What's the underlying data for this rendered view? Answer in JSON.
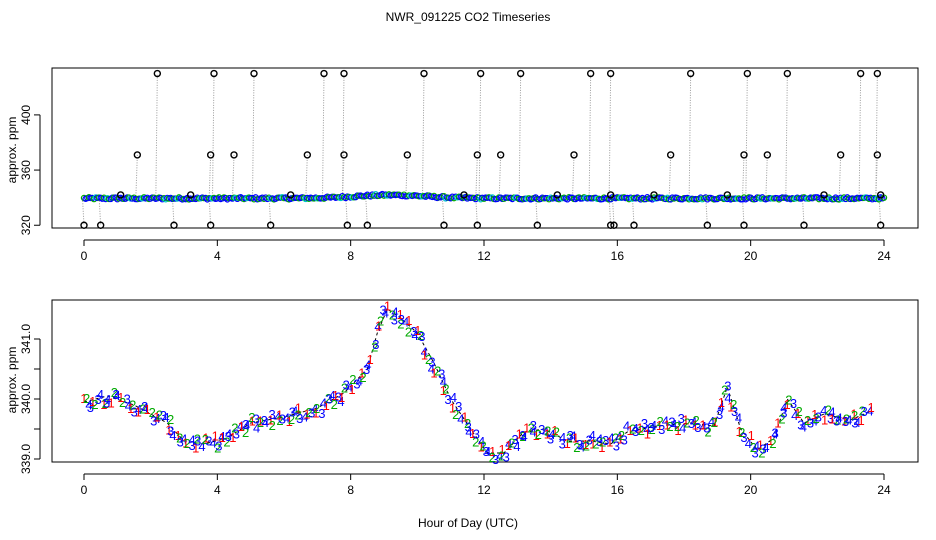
{
  "title": "NWR_091225  CO2 Timeseries",
  "xlabel": "Hour of Day (UTC)",
  "colors": {
    "blue": "#0000ff",
    "green": "#00aa00",
    "red": "#ff0000",
    "cyan": "#00c8c8",
    "gray": "#999999",
    "black": "#000000"
  },
  "chart_data": [
    {
      "type": "scatter",
      "name": "top-panel",
      "ylabel": "approx. ppm",
      "xlim": [
        0,
        24
      ],
      "ylim": [
        318,
        434
      ],
      "xticks": [
        "0",
        "4",
        "8",
        "12",
        "16",
        "20",
        "24"
      ],
      "yticks": [
        "320",
        "360",
        "400"
      ],
      "baseline_ppm": 339.5,
      "spikes": [
        {
          "x": 0.0,
          "y": 320
        },
        {
          "x": 0.5,
          "y": 320
        },
        {
          "x": 1.1,
          "y": 342
        },
        {
          "x": 1.6,
          "y": 371
        },
        {
          "x": 2.2,
          "y": 430
        },
        {
          "x": 2.7,
          "y": 320
        },
        {
          "x": 3.2,
          "y": 342
        },
        {
          "x": 3.8,
          "y": 371
        },
        {
          "x": 3.9,
          "y": 430
        },
        {
          "x": 4.5,
          "y": 371
        },
        {
          "x": 5.1,
          "y": 430
        },
        {
          "x": 5.6,
          "y": 320
        },
        {
          "x": 6.2,
          "y": 342
        },
        {
          "x": 6.7,
          "y": 371
        },
        {
          "x": 7.2,
          "y": 430
        },
        {
          "x": 7.8,
          "y": 430
        },
        {
          "x": 7.8,
          "y": 371
        },
        {
          "x": 7.9,
          "y": 320
        },
        {
          "x": 8.5,
          "y": 320
        },
        {
          "x": 9.7,
          "y": 371
        },
        {
          "x": 10.2,
          "y": 430
        },
        {
          "x": 10.8,
          "y": 320
        },
        {
          "x": 11.4,
          "y": 342
        },
        {
          "x": 11.8,
          "y": 371
        },
        {
          "x": 11.9,
          "y": 430
        },
        {
          "x": 12.5,
          "y": 371
        },
        {
          "x": 13.1,
          "y": 430
        },
        {
          "x": 13.6,
          "y": 320
        },
        {
          "x": 14.2,
          "y": 342
        },
        {
          "x": 14.7,
          "y": 371
        },
        {
          "x": 15.2,
          "y": 430
        },
        {
          "x": 15.8,
          "y": 430
        },
        {
          "x": 15.8,
          "y": 342
        },
        {
          "x": 15.9,
          "y": 320
        },
        {
          "x": 16.5,
          "y": 320
        },
        {
          "x": 17.1,
          "y": 342
        },
        {
          "x": 17.6,
          "y": 371
        },
        {
          "x": 18.2,
          "y": 430
        },
        {
          "x": 18.7,
          "y": 320
        },
        {
          "x": 19.3,
          "y": 342
        },
        {
          "x": 19.8,
          "y": 371
        },
        {
          "x": 19.9,
          "y": 430
        },
        {
          "x": 20.5,
          "y": 371
        },
        {
          "x": 21.1,
          "y": 430
        },
        {
          "x": 21.6,
          "y": 320
        },
        {
          "x": 22.2,
          "y": 342
        },
        {
          "x": 22.7,
          "y": 371
        },
        {
          "x": 23.3,
          "y": 430
        },
        {
          "x": 23.8,
          "y": 430
        },
        {
          "x": 23.8,
          "y": 371
        },
        {
          "x": 23.9,
          "y": 342
        },
        {
          "x": 23.9,
          "y": 320
        },
        {
          "x": 19.8,
          "y": 320
        },
        {
          "x": 3.8,
          "y": 320
        },
        {
          "x": 11.8,
          "y": 320
        },
        {
          "x": 15.8,
          "y": 320
        }
      ]
    },
    {
      "type": "scatter",
      "name": "bottom-panel",
      "ylabel": "approx. ppm",
      "xlim": [
        0,
        24
      ],
      "ylim": [
        338.95,
        341.65
      ],
      "xticks": [
        "0",
        "4",
        "8",
        "12",
        "16",
        "20",
        "24"
      ],
      "yticks": [
        "339.0",
        "339.5",
        "340.0",
        "340.5",
        "341.0"
      ],
      "yticks_labeled": [
        "339.0",
        "340.0",
        "341.0"
      ],
      "series": [
        {
          "name": "1",
          "color": "red",
          "marker": "1"
        },
        {
          "name": "2",
          "color": "green",
          "marker": "2"
        },
        {
          "name": "3",
          "color": "blue",
          "marker": "3"
        },
        {
          "name": "4",
          "color": "blue",
          "marker": "4"
        }
      ],
      "trend": [
        {
          "x": 0.0,
          "y": 339.95
        },
        {
          "x": 0.7,
          "y": 340.05
        },
        {
          "x": 1.5,
          "y": 339.9
        },
        {
          "x": 2.5,
          "y": 339.6
        },
        {
          "x": 3.0,
          "y": 339.3
        },
        {
          "x": 3.6,
          "y": 339.25
        },
        {
          "x": 4.3,
          "y": 339.35
        },
        {
          "x": 5.0,
          "y": 339.6
        },
        {
          "x": 6.0,
          "y": 339.7
        },
        {
          "x": 7.0,
          "y": 339.85
        },
        {
          "x": 7.8,
          "y": 340.1
        },
        {
          "x": 8.5,
          "y": 340.5
        },
        {
          "x": 8.8,
          "y": 341.1
        },
        {
          "x": 9.1,
          "y": 341.5
        },
        {
          "x": 9.5,
          "y": 341.35
        },
        {
          "x": 10.0,
          "y": 341.1
        },
        {
          "x": 10.5,
          "y": 340.6
        },
        {
          "x": 11.0,
          "y": 340.0
        },
        {
          "x": 11.6,
          "y": 339.5
        },
        {
          "x": 12.1,
          "y": 339.1
        },
        {
          "x": 12.6,
          "y": 339.1
        },
        {
          "x": 13.2,
          "y": 339.45
        },
        {
          "x": 13.8,
          "y": 339.5
        },
        {
          "x": 14.5,
          "y": 339.3
        },
        {
          "x": 15.2,
          "y": 339.3
        },
        {
          "x": 15.8,
          "y": 339.25
        },
        {
          "x": 16.3,
          "y": 339.45
        },
        {
          "x": 17.2,
          "y": 339.55
        },
        {
          "x": 18.2,
          "y": 339.6
        },
        {
          "x": 18.9,
          "y": 339.55
        },
        {
          "x": 19.3,
          "y": 340.2
        },
        {
          "x": 19.7,
          "y": 339.5
        },
        {
          "x": 20.2,
          "y": 339.15
        },
        {
          "x": 20.7,
          "y": 339.35
        },
        {
          "x": 21.1,
          "y": 340.0
        },
        {
          "x": 21.6,
          "y": 339.6
        },
        {
          "x": 22.2,
          "y": 339.75
        },
        {
          "x": 23.0,
          "y": 339.65
        },
        {
          "x": 23.6,
          "y": 339.8
        }
      ]
    }
  ]
}
